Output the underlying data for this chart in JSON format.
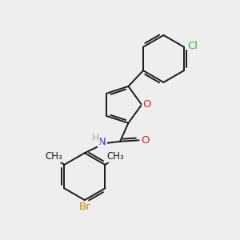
{
  "bg_color": "#eeeeee",
  "bond_color": "#1a1a1a",
  "atoms": {
    "Cl": {
      "color": "#33bb33",
      "fontsize": 9.5
    },
    "O_carbonyl": {
      "color": "#dd2222",
      "fontsize": 9.5
    },
    "O_furan": {
      "color": "#dd2222",
      "fontsize": 9.5
    },
    "N": {
      "color": "#3333dd",
      "fontsize": 9.5
    },
    "H": {
      "color": "#aaaaaa",
      "fontsize": 9.0
    },
    "Br": {
      "color": "#cc8800",
      "fontsize": 9.5
    },
    "CH3": {
      "color": "#1a1a1a",
      "fontsize": 8.5
    }
  },
  "bond_width": 1.4,
  "figsize": [
    3.0,
    3.0
  ],
  "dpi": 100,
  "xlim": [
    0,
    10
  ],
  "ylim": [
    0,
    10
  ]
}
